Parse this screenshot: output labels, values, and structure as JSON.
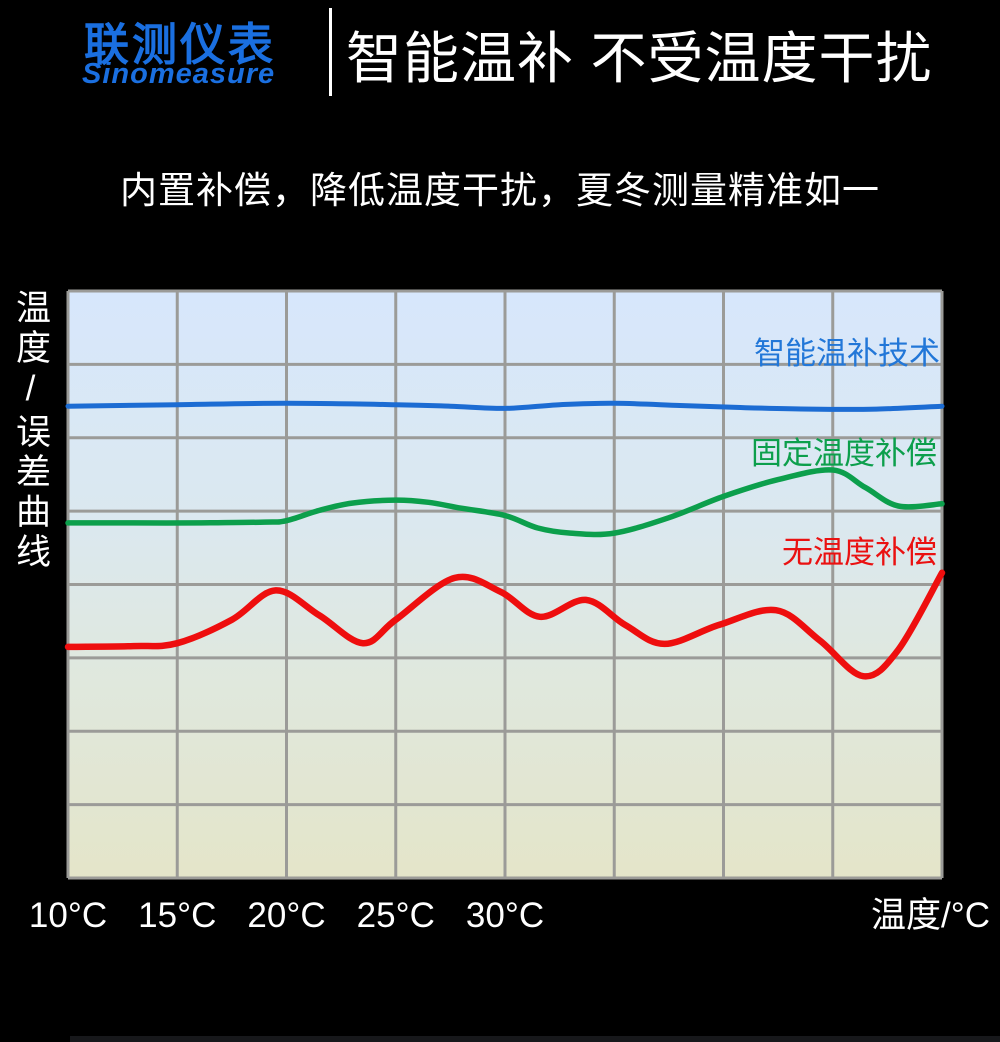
{
  "header": {
    "logo_cn": "联测仪表",
    "logo_en": "Sinomeasure",
    "logo_color": "#1a6fe0",
    "title": "智能温补 不受温度干扰"
  },
  "subtitle": "内置补偿，降低温度干扰，夏冬测量精准如一",
  "chart_data": {
    "type": "line",
    "title": "",
    "ylabel": "温度/误差曲线",
    "xlabel": "温度/°C",
    "x_tick_labels": [
      "10°C",
      "15°C",
      "20°C",
      "25°C",
      "30°C"
    ],
    "x_tick_positions": [
      10,
      15,
      20,
      25,
      30
    ],
    "x_range": [
      10,
      50
    ],
    "y_range": [
      0,
      8
    ],
    "grid_step_x": 5,
    "grid_step_y": 1,
    "grid": true,
    "grid_color": "#9b9b98",
    "background_gradient": [
      "#d7e7fc",
      "#e4e5c9"
    ],
    "legend_position": "labels-inline-right",
    "series": [
      {
        "name": "智能温补技术",
        "color": "#1c6cd3",
        "stroke_width": 5,
        "x": [
          10,
          15,
          20,
          25,
          27.5,
          30,
          32.5,
          35,
          38,
          41,
          44,
          47,
          50
        ],
        "y": [
          6.43,
          6.45,
          6.47,
          6.45,
          6.43,
          6.4,
          6.45,
          6.47,
          6.44,
          6.41,
          6.39,
          6.39,
          6.43
        ]
      },
      {
        "name": "固定温度补偿",
        "color": "#0c9f4c",
        "stroke_width": 5.5,
        "x": [
          10,
          13,
          16,
          19,
          20,
          21.5,
          23,
          25,
          26.5,
          28,
          30,
          31.5,
          33,
          35,
          37.5,
          40,
          42.5,
          45,
          46.5,
          48,
          50
        ],
        "y": [
          4.84,
          4.84,
          4.84,
          4.85,
          4.87,
          5.01,
          5.11,
          5.15,
          5.12,
          5.04,
          4.94,
          4.77,
          4.7,
          4.7,
          4.91,
          5.2,
          5.43,
          5.56,
          5.32,
          5.07,
          5.1
        ]
      },
      {
        "name": "无温度补偿",
        "color": "#ee0e0e",
        "stroke_width": 6.5,
        "x": [
          10,
          13,
          15,
          17.5,
          19.5,
          21.5,
          23.5,
          25,
          27.7,
          29.8,
          31.6,
          33.7,
          35.5,
          37.3,
          39.8,
          42.4,
          44.4,
          46.4,
          48,
          50
        ],
        "y": [
          3.15,
          3.16,
          3.2,
          3.52,
          3.92,
          3.58,
          3.2,
          3.52,
          4.09,
          3.9,
          3.56,
          3.79,
          3.45,
          3.19,
          3.45,
          3.65,
          3.24,
          2.75,
          3.11,
          4.16
        ]
      }
    ]
  }
}
